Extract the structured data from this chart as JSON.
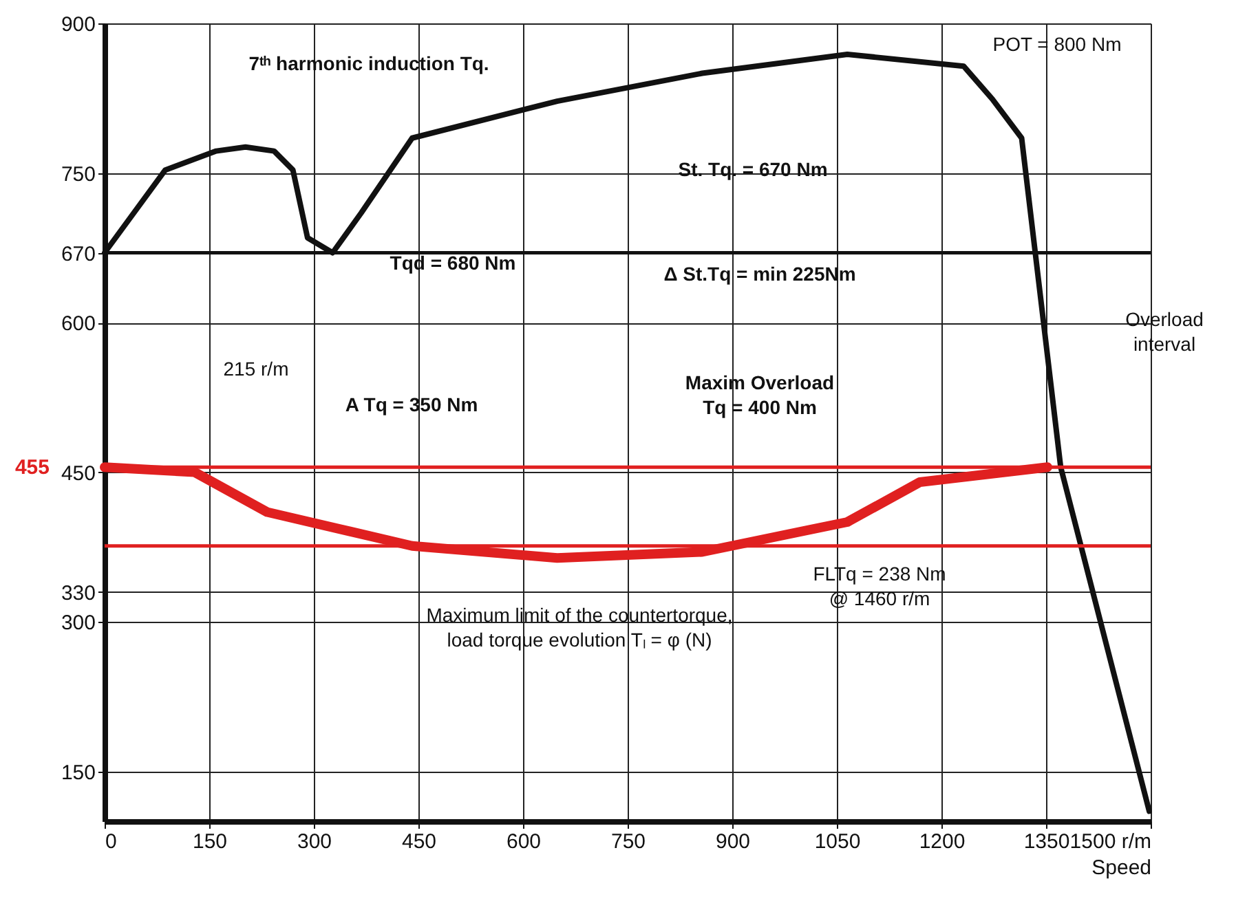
{
  "chart_data": {
    "type": "line",
    "xlabel": "Speed",
    "xlim": [
      0,
      1500
    ],
    "ylim": [
      100,
      900
    ],
    "xticks": [
      0,
      150,
      300,
      450,
      600,
      750,
      900,
      1050,
      1200,
      1350,
      {
        "value": 1500,
        "label": "1500 r/m"
      }
    ],
    "yticks": [
      150,
      300,
      330,
      450,
      600,
      670,
      750,
      900
    ],
    "grid": true,
    "series": [
      {
        "color": "#111111",
        "x": [
          0,
          87,
          160,
          202,
          243,
          270,
          291,
          327,
          368,
          441,
          649,
          857,
          1065,
          1232,
          1273,
          1315,
          1371,
          1498
        ],
        "values": [
          670,
          753,
          772,
          776,
          772,
          753,
          685,
          670,
          710,
          785,
          822,
          850,
          869,
          857,
          824,
          785,
          455,
          110
        ]
      },
      {
        "color": "#e02020",
        "x": [
          0,
          129,
          233,
          441,
          649,
          857,
          1065,
          1169,
          1352
        ],
        "values": [
          455,
          450,
          410,
          376,
          364,
          370,
          400,
          440,
          455
        ]
      }
    ],
    "ref_lines": [
      {
        "axis": "y",
        "value": 670,
        "color": "#111111"
      },
      {
        "axis": "y",
        "value": 455,
        "label": "455",
        "color": "#e02020"
      },
      {
        "axis": "y",
        "value": 376,
        "color": "#e02020"
      }
    ],
    "annotations": [
      "7ᵗʰ harmonic induction Tq.",
      "Tqd = 680 Nm",
      "215 r/m",
      "A Tq = 350 Nm",
      "St. Tq. = 670 Nm",
      "Δ St.Tq = min 225Nm",
      "Maxim Overload\nTq = 400 Nm",
      "POT = 800 Nm",
      "Overload\ninterval",
      "FLTq = 238 Nm\n@ 1460 r/m",
      "Maximum limit of the countertorque,\nload torque evolution Tₗ = φ (N)"
    ]
  }
}
